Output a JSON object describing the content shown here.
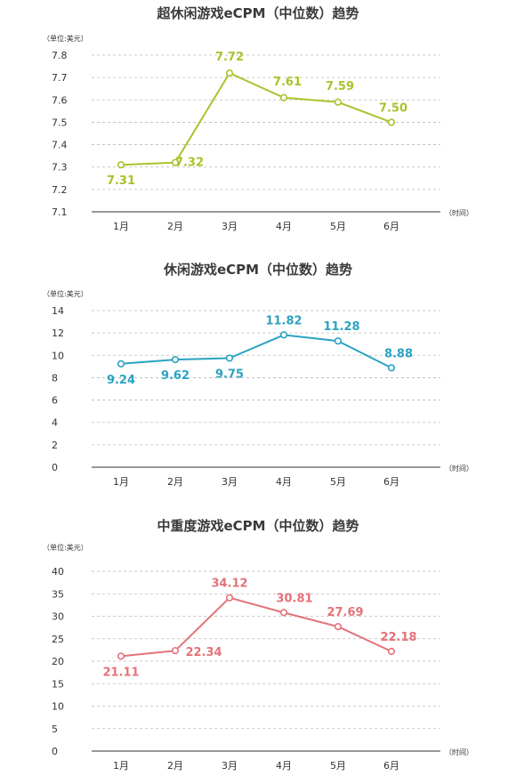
{
  "chart_data": [
    {
      "type": "line",
      "title": "超休闲游戏eCPM（中位数）趋势",
      "ylabel": "（单位:美元）",
      "xlabel": "（时间）",
      "categories": [
        "1月",
        "2月",
        "3月",
        "4月",
        "5月",
        "6月"
      ],
      "values": [
        7.31,
        7.32,
        7.72,
        7.61,
        7.59,
        7.5
      ],
      "value_labels": [
        "7.31",
        "7.32",
        "7.72",
        "7.61",
        "7.59",
        "7.50"
      ],
      "ylim": [
        7.1,
        7.8
      ],
      "yticks": [
        "7.1",
        "7.2",
        "7.3",
        "7.4",
        "7.5",
        "7.6",
        "7.7",
        "7.8"
      ],
      "grid": true,
      "color": "#a8c32a"
    },
    {
      "type": "line",
      "title": "休闲游戏eCPM（中位数）趋势",
      "ylabel": "（单位:美元）",
      "xlabel": "（时间）",
      "categories": [
        "1月",
        "2月",
        "3月",
        "4月",
        "5月",
        "6月"
      ],
      "values": [
        9.24,
        9.62,
        9.75,
        11.82,
        11.28,
        8.88
      ],
      "value_labels": [
        "9.24",
        "9.62",
        "9.75",
        "11.82",
        "11.28",
        "8.88"
      ],
      "ylim": [
        0,
        14
      ],
      "yticks": [
        "0",
        "2",
        "4",
        "6",
        "8",
        "10",
        "12",
        "14"
      ],
      "grid": true,
      "color": "#2aa3c2"
    },
    {
      "type": "line",
      "title": "中重度游戏eCPM（中位数）趋势",
      "ylabel": "（单位:美元）",
      "xlabel": "（时间）",
      "categories": [
        "1月",
        "2月",
        "3月",
        "4月",
        "5月",
        "6月"
      ],
      "values": [
        21.11,
        22.34,
        34.12,
        30.81,
        27.69,
        22.18
      ],
      "value_labels": [
        "21.11",
        "22.34",
        "34.12",
        "30.81",
        "27.69",
        "22.18"
      ],
      "ylim": [
        0,
        40
      ],
      "yticks": [
        "0",
        "5",
        "10",
        "15",
        "20",
        "25",
        "30",
        "35",
        "40"
      ],
      "grid": true,
      "color": "#e37278"
    }
  ]
}
